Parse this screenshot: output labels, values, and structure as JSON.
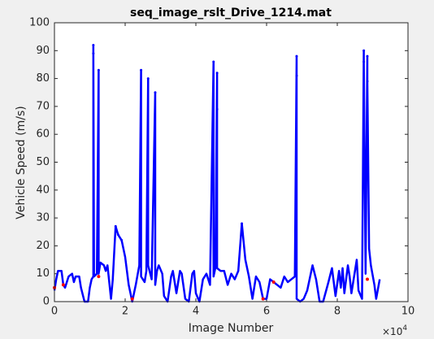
{
  "chart_data": {
    "type": "line",
    "title": "seq_image_rslt_Drive_1214.mat",
    "xlabel": "Image Number",
    "ylabel": "Vehicle Speed (m/s)",
    "x_multiplier": {
      "base": "×10",
      "exponent": "4"
    },
    "xlim": [
      0,
      10
    ],
    "ylim": [
      0,
      100
    ],
    "xticks": [
      0,
      2,
      4,
      6,
      8,
      10
    ],
    "yticks": [
      0,
      10,
      20,
      30,
      40,
      50,
      60,
      70,
      80,
      90,
      100
    ],
    "series": [
      {
        "color": "#0000ff",
        "x": [
          0,
          0.05,
          0.1,
          0.2,
          0.25,
          0.3,
          0.4,
          0.5,
          0.55,
          0.6,
          0.7,
          0.75,
          0.85,
          0.95,
          1.0,
          1.05,
          1.1,
          1.1,
          1.1,
          1.12,
          1.2,
          1.25,
          1.25,
          1.3,
          1.4,
          1.45,
          1.5,
          1.6,
          1.65,
          1.7,
          1.73,
          1.8,
          1.9,
          2.0,
          2.1,
          2.2,
          2.3,
          2.4,
          2.45,
          2.45,
          2.55,
          2.6,
          2.65,
          2.65,
          2.75,
          2.85,
          2.85,
          2.9,
          2.95,
          3.05,
          3.1,
          3.2,
          3.3,
          3.35,
          3.45,
          3.55,
          3.6,
          3.7,
          3.8,
          3.9,
          3.95,
          4.0,
          4.1,
          4.2,
          4.3,
          4.4,
          4.5,
          4.5,
          4.55,
          4.6,
          4.6,
          4.6,
          4.7,
          4.8,
          4.9,
          5.0,
          5.1,
          5.2,
          5.3,
          5.4,
          5.5,
          5.6,
          5.7,
          5.8,
          5.9,
          6.0,
          6.1,
          6.2,
          6.3,
          6.4,
          6.5,
          6.6,
          6.7,
          6.8,
          6.85,
          6.85,
          6.85,
          6.95,
          7.05,
          7.15,
          7.3,
          7.4,
          7.5,
          7.6,
          7.75,
          7.85,
          7.95,
          8.05,
          8.1,
          8.15,
          8.2,
          8.3,
          8.35,
          8.4,
          8.5,
          8.55,
          8.6,
          8.7,
          8.75,
          8.75,
          8.8,
          8.85,
          8.85,
          8.9,
          8.95,
          9.05,
          9.1,
          9.2
        ],
        "values": [
          4,
          8,
          11,
          11,
          6,
          5,
          9,
          10,
          7,
          9,
          9,
          5,
          0,
          0,
          5,
          8,
          9,
          92,
          89,
          9,
          10,
          83,
          10,
          14,
          13,
          11,
          13,
          1,
          8,
          20,
          27,
          24,
          22,
          16,
          6,
          0,
          6,
          13,
          83,
          9,
          7,
          11,
          80,
          13,
          8,
          75,
          6,
          11,
          13,
          10,
          2,
          0,
          9,
          11,
          3,
          11,
          10,
          1,
          0,
          10,
          11,
          3,
          0,
          8,
          10,
          6,
          86,
          9,
          12,
          82,
          69,
          12,
          11,
          11,
          6,
          10,
          8,
          11,
          28,
          15,
          9,
          1,
          9,
          7,
          1,
          1,
          8,
          7,
          6,
          5,
          9,
          7,
          8,
          9,
          88,
          81,
          1,
          0,
          1,
          4,
          13,
          8,
          0,
          0,
          7,
          12,
          2,
          11,
          5,
          12,
          3,
          13,
          9,
          3,
          11,
          15,
          4,
          1,
          90,
          86,
          10,
          88,
          79,
          19,
          13,
          6,
          1,
          8
        ]
      },
      {
        "color": "#ff0000",
        "x": [
          0,
          0.25,
          1.25,
          2.2,
          5.9,
          6.2,
          8.85
        ],
        "values": [
          5,
          6,
          9,
          1,
          1,
          7,
          8
        ]
      }
    ]
  }
}
